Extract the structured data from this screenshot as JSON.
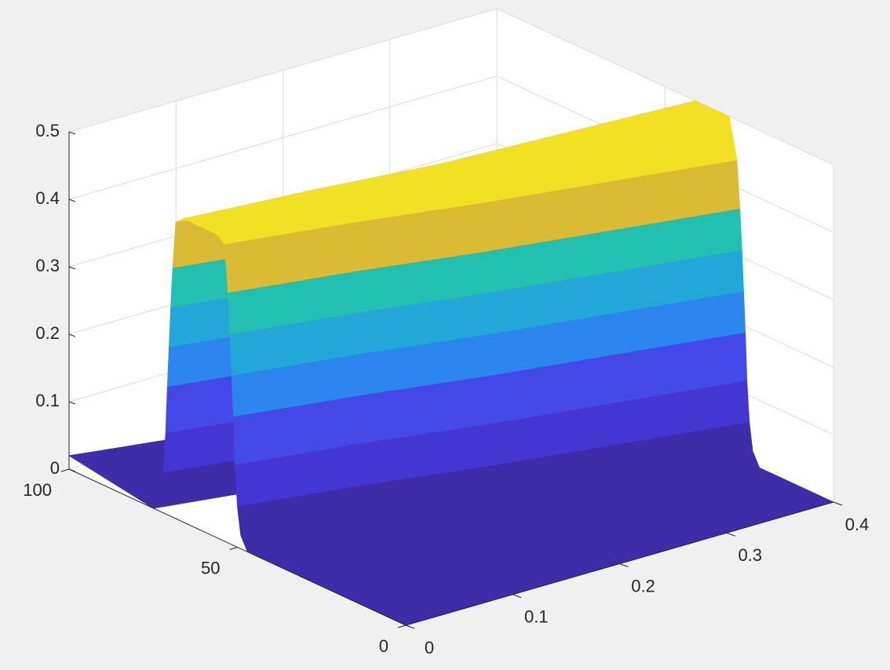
{
  "chart_data": {
    "type": "surface",
    "xlim": [
      0,
      0.4
    ],
    "xticks": [
      0,
      0.1,
      0.2,
      0.3,
      0.4
    ],
    "ylim": [
      0,
      100
    ],
    "yticks": [
      0,
      50,
      100
    ],
    "zlim": [
      0,
      0.5
    ],
    "zticks": [
      0,
      0.1,
      0.2,
      0.3,
      0.4,
      0.5
    ],
    "grid": true,
    "colormap": [
      "#3e2ca8",
      "#4336d2",
      "#4448e6",
      "#2d86f0",
      "#22a7d8",
      "#22c0b0",
      "#dcbb34",
      "#f2e024"
    ],
    "surface": {
      "x": [
        0,
        0.1,
        0.2,
        0.3,
        0.4
      ],
      "y": [
        [
          0,
          47,
          49,
          50,
          50.7,
          51.2,
          51.7,
          52.2,
          52.8,
          53.7,
          56,
          66,
          68.3,
          69.2,
          69.8,
          70.3,
          70.8,
          71.3,
          72,
          73,
          75,
          100
        ],
        [
          0,
          41,
          43,
          44,
          44.7,
          45.2,
          45.7,
          46.2,
          46.8,
          47.7,
          50,
          60,
          62.3,
          63.2,
          63.8,
          64.3,
          64.8,
          65.3,
          66,
          67,
          69,
          100
        ],
        [
          0,
          34,
          36,
          37,
          37.7,
          38.2,
          38.7,
          39.2,
          39.8,
          40.7,
          43,
          53,
          55.3,
          56.2,
          56.8,
          57.3,
          57.8,
          58.3,
          59,
          60,
          62,
          100
        ],
        [
          0,
          28,
          30,
          31,
          31.7,
          32.2,
          32.7,
          33.2,
          33.8,
          34.7,
          37,
          47,
          49.3,
          50.2,
          50.8,
          51.3,
          51.8,
          52.3,
          53,
          54,
          56,
          100
        ],
        [
          0,
          22,
          24,
          25,
          25.7,
          26.2,
          26.7,
          27.2,
          27.8,
          28.7,
          31,
          41,
          43.3,
          44.2,
          44.8,
          45.3,
          45.8,
          46.3,
          47,
          48,
          50,
          100
        ]
      ],
      "z": [
        [
          0,
          0,
          0.02,
          0.06,
          0.12,
          0.19,
          0.25,
          0.31,
          0.37,
          0.44,
          0.45,
          0.45,
          0.44,
          0.37,
          0.31,
          0.25,
          0.19,
          0.12,
          0.06,
          0.02,
          0,
          0.02
        ],
        [
          0,
          0,
          0.02,
          0.06,
          0.12,
          0.19,
          0.25,
          0.31,
          0.37,
          0.44,
          0.46,
          0.46,
          0.44,
          0.37,
          0.31,
          0.25,
          0.19,
          0.12,
          0.06,
          0.02,
          0,
          0
        ],
        [
          0,
          0,
          0.02,
          0.06,
          0.12,
          0.19,
          0.25,
          0.31,
          0.37,
          0.44,
          0.47,
          0.47,
          0.44,
          0.37,
          0.31,
          0.25,
          0.19,
          0.12,
          0.06,
          0.02,
          0,
          0
        ],
        [
          0,
          0,
          0.02,
          0.06,
          0.12,
          0.19,
          0.25,
          0.31,
          0.37,
          0.44,
          0.485,
          0.485,
          0.44,
          0.37,
          0.31,
          0.25,
          0.19,
          0.12,
          0.06,
          0.02,
          0,
          0
        ],
        [
          0,
          0,
          0.02,
          0.06,
          0.12,
          0.19,
          0.25,
          0.31,
          0.37,
          0.44,
          0.5,
          0.5,
          0.44,
          0.37,
          0.31,
          0.25,
          0.19,
          0.12,
          0.06,
          0.02,
          0,
          0
        ]
      ]
    }
  }
}
